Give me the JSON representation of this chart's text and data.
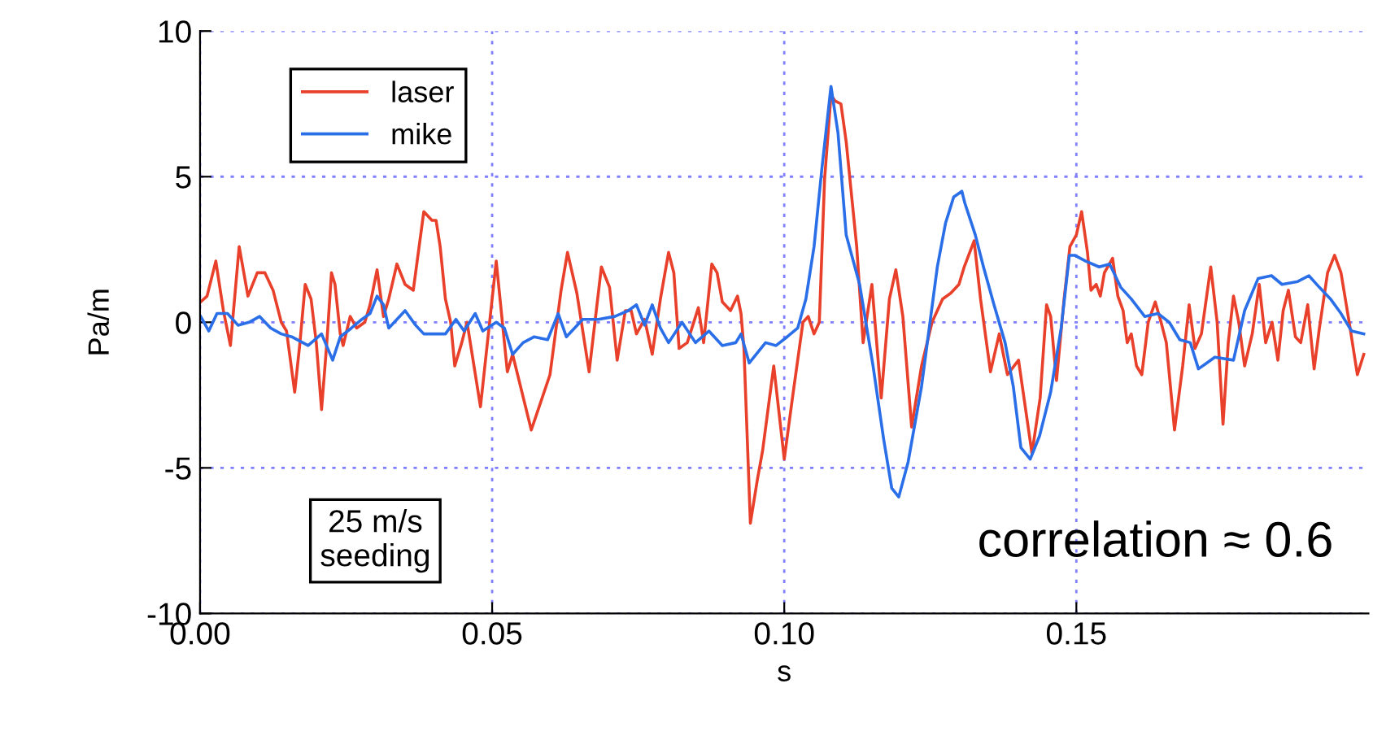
{
  "chart_data": {
    "type": "line",
    "xlabel": "s",
    "ylabel": "Pa/m",
    "xlim": [
      0,
      0.2
    ],
    "ylim": [
      -10,
      10
    ],
    "xticks": [
      {
        "value": 0,
        "label": "0.00"
      },
      {
        "value": 0.05,
        "label": "0.05"
      },
      {
        "value": 0.1,
        "label": "0.10"
      },
      {
        "value": 0.15,
        "label": "0.15"
      }
    ],
    "yticks": [
      -10,
      -5,
      0,
      5,
      10
    ],
    "grid": true,
    "legend": "top left",
    "line_style": "solid",
    "marker": "none",
    "annotations": [
      "25 m/s\nseeding",
      "correlation ≈ 0.6"
    ],
    "series": [
      {
        "name": "laser",
        "color": "#e8402a",
        "x": [
          0.0001,
          0.0012,
          0.0027,
          0.004,
          0.0052,
          0.0067,
          0.0082,
          0.0098,
          0.0111,
          0.0125,
          0.0139,
          0.0148,
          0.0162,
          0.0171,
          0.018,
          0.019,
          0.0199,
          0.0208,
          0.0217,
          0.0225,
          0.0231,
          0.024,
          0.0245,
          0.0257,
          0.0268,
          0.0282,
          0.0291,
          0.0303,
          0.0314,
          0.0323,
          0.0337,
          0.0351,
          0.0365,
          0.0383,
          0.0397,
          0.0404,
          0.0411,
          0.042,
          0.0429,
          0.0436,
          0.0448,
          0.0457,
          0.048,
          0.0507,
          0.0526,
          0.0535,
          0.0567,
          0.0599,
          0.0618,
          0.0629,
          0.0645,
          0.0666,
          0.0687,
          0.0701,
          0.0714,
          0.0728,
          0.0738,
          0.0747,
          0.0761,
          0.0774,
          0.0788,
          0.0802,
          0.0811,
          0.082,
          0.0834,
          0.0853,
          0.0862,
          0.0876,
          0.0885,
          0.0894,
          0.0908,
          0.092,
          0.0926,
          0.0931,
          0.0942,
          0.0954,
          0.0963,
          0.0982,
          0.1,
          0.1014,
          0.1032,
          0.1041,
          0.1051,
          0.106,
          0.1069,
          0.108,
          0.1087,
          0.1097,
          0.1106,
          0.1124,
          0.1135,
          0.115,
          0.1166,
          0.118,
          0.1191,
          0.1203,
          0.1218,
          0.1235,
          0.1253,
          0.1271,
          0.1285,
          0.1299,
          0.1308,
          0.1325,
          0.1336,
          0.1353,
          0.1368,
          0.1382,
          0.1401,
          0.1424,
          0.1438,
          0.1449,
          0.1456,
          0.1466,
          0.1479,
          0.1489,
          0.15,
          0.1509,
          0.1519,
          0.1525,
          0.1534,
          0.1541,
          0.1548,
          0.1562,
          0.1571,
          0.158,
          0.1587,
          0.1594,
          0.1603,
          0.1612,
          0.1623,
          0.1635,
          0.1645,
          0.1654,
          0.1668,
          0.1682,
          0.1693,
          0.1703,
          0.1714,
          0.173,
          0.1741,
          0.1751,
          0.176,
          0.1769,
          0.1778,
          0.1788,
          0.1801,
          0.1813,
          0.1824,
          0.1835,
          0.1845,
          0.1854,
          0.1863,
          0.1875,
          0.1884,
          0.1896,
          0.1907,
          0.1916,
          0.193,
          0.1942,
          0.1953,
          0.1967,
          0.1981,
          0.1992
        ],
        "values": [
          0.7,
          0.9,
          2.1,
          0.4,
          -0.8,
          2.6,
          0.9,
          1.7,
          1.7,
          1.1,
          0.0,
          -0.3,
          -2.4,
          -0.7,
          1.3,
          0.8,
          -0.7,
          -3.0,
          -0.7,
          1.7,
          1.3,
          -0.4,
          -0.8,
          0.2,
          -0.2,
          0.0,
          0.6,
          1.8,
          0.2,
          0.8,
          2.0,
          1.3,
          1.1,
          3.8,
          3.5,
          3.5,
          2.6,
          0.8,
          0.0,
          -1.5,
          -0.7,
          0.0,
          -2.9,
          2.1,
          -1.7,
          -1.1,
          -3.7,
          -1.8,
          1.1,
          2.4,
          1.0,
          -1.7,
          1.9,
          1.2,
          -1.3,
          0.4,
          0.4,
          -0.4,
          0.1,
          -1.1,
          0.8,
          2.4,
          1.7,
          -0.9,
          -0.7,
          0.5,
          -0.7,
          2.0,
          1.7,
          0.7,
          0.4,
          0.9,
          0.3,
          -0.9,
          -6.9,
          -5.4,
          -4.4,
          -1.5,
          -4.7,
          -2.6,
          0.0,
          0.2,
          -0.4,
          0.0,
          4.9,
          7.8,
          7.6,
          7.5,
          6.2,
          2.6,
          -0.7,
          1.3,
          -2.6,
          0.8,
          1.8,
          0.2,
          -3.6,
          -1.5,
          0.0,
          0.8,
          1.0,
          1.3,
          1.9,
          2.8,
          0.8,
          -1.7,
          -0.4,
          -1.8,
          -1.3,
          -4.5,
          -2.6,
          0.6,
          0.2,
          -2.0,
          0.8,
          2.6,
          3.0,
          3.8,
          2.4,
          1.1,
          1.3,
          0.9,
          1.7,
          2.2,
          0.9,
          0.4,
          -0.7,
          -0.4,
          -1.5,
          -1.8,
          0.0,
          0.7,
          0.0,
          -0.7,
          -3.7,
          -1.5,
          0.6,
          -0.9,
          -0.4,
          1.9,
          0.0,
          -3.5,
          -0.7,
          0.9,
          0.0,
          -1.5,
          -0.4,
          1.3,
          -0.7,
          0.0,
          -1.3,
          0.4,
          1.1,
          -0.5,
          -0.7,
          0.6,
          -1.6,
          -0.2,
          1.7,
          2.3,
          1.7,
          0.0,
          -1.8,
          -1.1
        ]
      },
      {
        "name": "mike",
        "color": "#2a6ee8",
        "x": [
          0.0001,
          0.0015,
          0.0029,
          0.0047,
          0.0065,
          0.0084,
          0.0102,
          0.0121,
          0.0139,
          0.0157,
          0.0185,
          0.0208,
          0.0227,
          0.024,
          0.0259,
          0.0277,
          0.0291,
          0.0303,
          0.0314,
          0.0323,
          0.0337,
          0.0351,
          0.0369,
          0.0383,
          0.0401,
          0.042,
          0.0438,
          0.0452,
          0.0471,
          0.0484,
          0.0507,
          0.0521,
          0.0535,
          0.0553,
          0.0572,
          0.0595,
          0.0613,
          0.0627,
          0.0655,
          0.0682,
          0.071,
          0.0733,
          0.0747,
          0.0761,
          0.0774,
          0.0788,
          0.0802,
          0.0825,
          0.0848,
          0.0871,
          0.0894,
          0.0917,
          0.0926,
          0.094,
          0.0968,
          0.0986,
          0.1005,
          0.1023,
          0.1037,
          0.1051,
          0.1064,
          0.108,
          0.1092,
          0.1106,
          0.1129,
          0.1152,
          0.117,
          0.1184,
          0.1196,
          0.1212,
          0.1235,
          0.1262,
          0.1276,
          0.129,
          0.1304,
          0.1309,
          0.1327,
          0.1341,
          0.1359,
          0.1378,
          0.1392,
          0.1405,
          0.1421,
          0.1437,
          0.1456,
          0.1474,
          0.1488,
          0.1497,
          0.1516,
          0.1539,
          0.1557,
          0.1576,
          0.1594,
          0.1617,
          0.164,
          0.1659,
          0.1677,
          0.1695,
          0.1709,
          0.1723,
          0.1737,
          0.1769,
          0.1788,
          0.1811,
          0.1834,
          0.1852,
          0.1879,
          0.1898,
          0.1916,
          0.1935,
          0.1953,
          0.1971,
          0.1992
        ],
        "values": [
          0.2,
          -0.3,
          0.3,
          0.3,
          -0.1,
          0.0,
          0.2,
          -0.2,
          -0.4,
          -0.5,
          -0.8,
          -0.4,
          -1.3,
          -0.5,
          -0.2,
          0.1,
          0.3,
          0.9,
          0.6,
          -0.2,
          0.1,
          0.4,
          -0.1,
          -0.4,
          -0.4,
          -0.4,
          0.1,
          -0.3,
          0.3,
          -0.3,
          0.0,
          -0.2,
          -1.1,
          -0.7,
          -0.5,
          -0.6,
          0.3,
          -0.5,
          0.1,
          0.1,
          0.2,
          0.4,
          0.6,
          -0.1,
          0.6,
          -0.2,
          -0.7,
          0.0,
          -0.7,
          -0.3,
          -0.8,
          -0.7,
          -0.4,
          -1.4,
          -0.7,
          -0.8,
          -0.5,
          -0.2,
          0.8,
          2.6,
          5.2,
          8.1,
          6.5,
          3.0,
          1.3,
          -1.5,
          -4.0,
          -5.7,
          -6.0,
          -4.8,
          -2.2,
          1.9,
          3.4,
          4.3,
          4.5,
          4.1,
          3.0,
          1.9,
          0.6,
          -0.7,
          -2.2,
          -4.3,
          -4.7,
          -3.9,
          -2.4,
          -0.2,
          2.3,
          2.3,
          2.1,
          1.9,
          2.0,
          1.2,
          0.8,
          0.2,
          0.3,
          0.0,
          -0.6,
          -0.7,
          -1.6,
          -1.4,
          -1.2,
          -1.3,
          0.4,
          1.5,
          1.6,
          1.3,
          1.4,
          1.6,
          1.2,
          0.8,
          0.3,
          -0.3,
          -0.4
        ]
      }
    ]
  }
}
